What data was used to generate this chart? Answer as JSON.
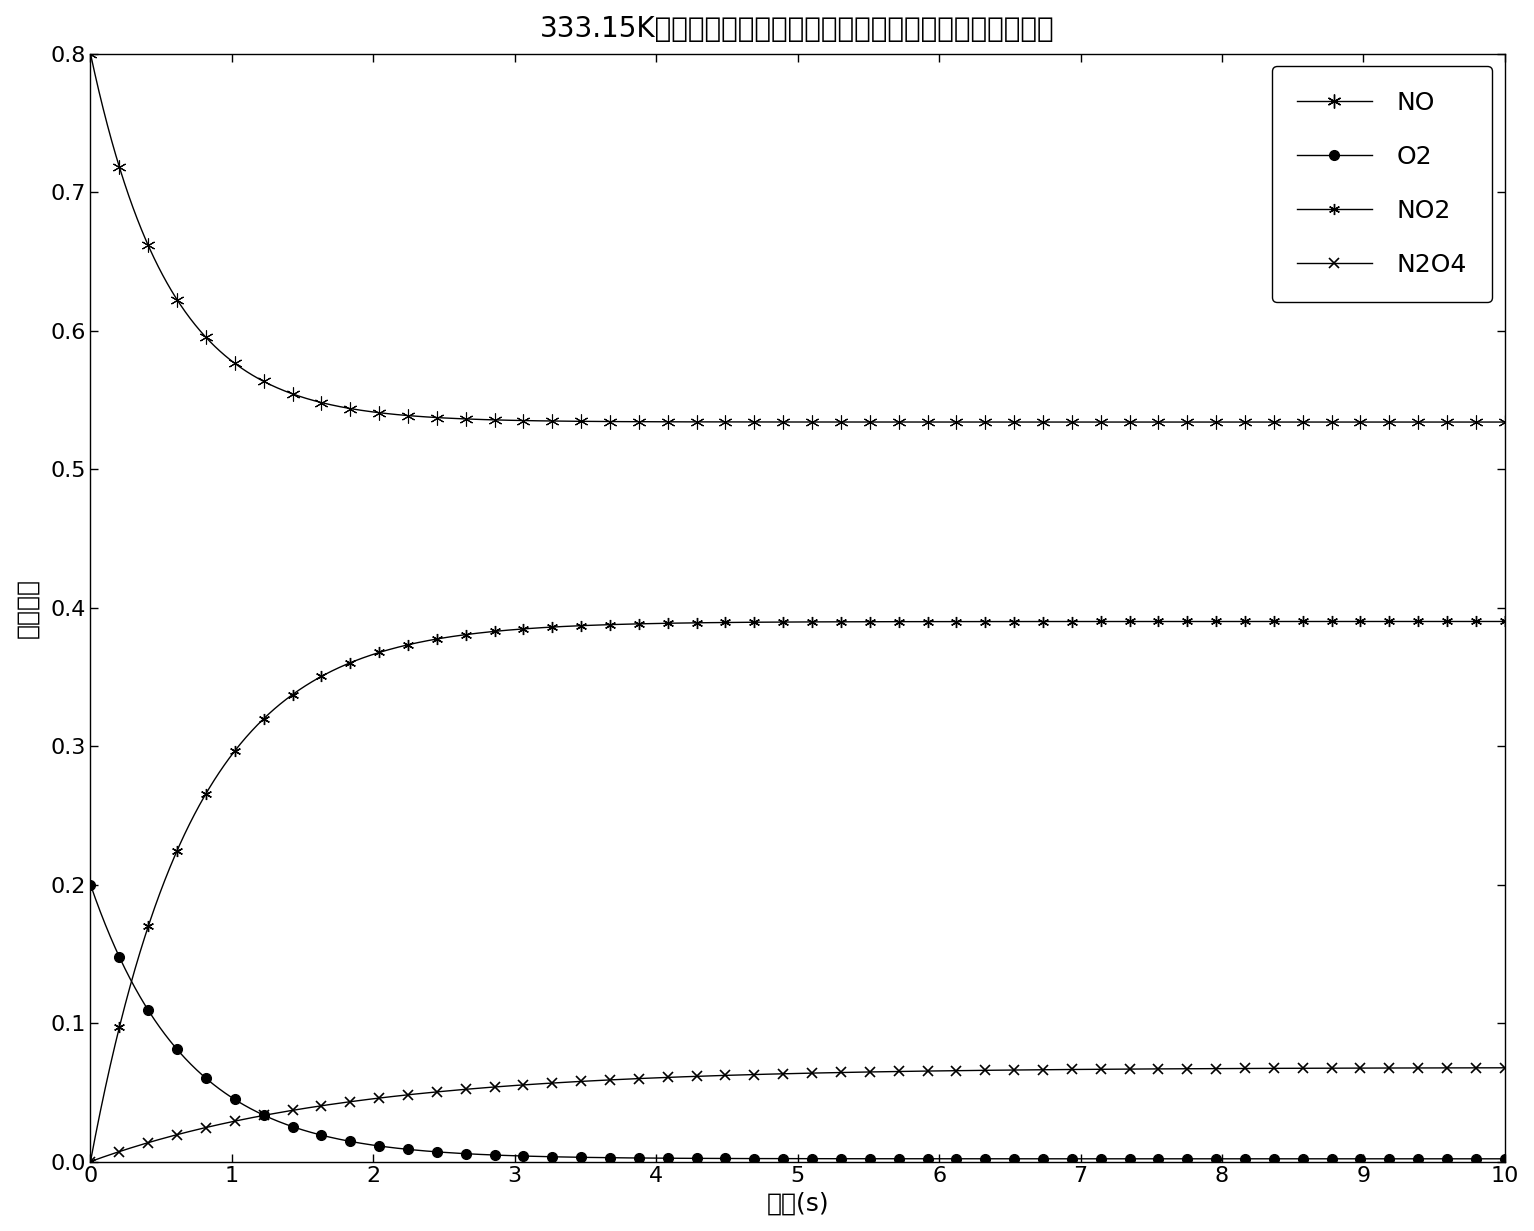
{
  "title": "333.15K下平推流反应器出口产物分布与停留时间模拟计算结果",
  "xlabel": "时间(s)",
  "ylabel": "摩尔分率",
  "xlim": [
    0,
    10
  ],
  "ylim": [
    0,
    0.8
  ],
  "xticks": [
    0,
    1,
    2,
    3,
    4,
    5,
    6,
    7,
    8,
    9,
    10
  ],
  "yticks": [
    0,
    0.1,
    0.2,
    0.3,
    0.4,
    0.5,
    0.6,
    0.7,
    0.8
  ],
  "NO_init": 0.8,
  "NO_final": 0.534,
  "NO_decay": 1.8,
  "O2_init": 0.2,
  "O2_final": 0.002,
  "O2_decay": 1.5,
  "NO2_final": 0.39,
  "NO2_rise": 1.4,
  "N2O4_final": 0.068,
  "N2O4_rise": 0.55,
  "line_color": "#000000",
  "bg_color": "#ffffff",
  "title_fontsize": 20,
  "label_fontsize": 18,
  "tick_fontsize": 16,
  "legend_fontsize": 18,
  "n_markers": 50
}
